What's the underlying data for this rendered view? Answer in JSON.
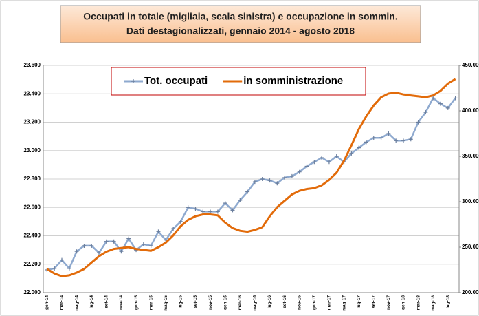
{
  "chart_data": {
    "type": "line",
    "title": "Occupati in  totale (migliaia, scala sinistra)  e occupazione in sommin.",
    "subtitle": "Dati destagionalizzati, gennaio 2014 - agosto 2018",
    "categories": [
      "gen-14",
      null,
      "mar-14",
      null,
      "mag-14",
      null,
      "lug-14",
      null,
      "set-14",
      null,
      "nov-14",
      null,
      "gen-15",
      null,
      "mar-15",
      null,
      "mag-15",
      null,
      "lug-15",
      null,
      "set-15",
      null,
      "nov-15",
      null,
      "gen-16",
      null,
      "mar-16",
      null,
      "mag-16",
      null,
      "lug-16",
      null,
      "set-16",
      null,
      "nov-16",
      null,
      "gen-17",
      null,
      "mar-17",
      null,
      "mag-17",
      null,
      "lug-17",
      null,
      "set-17",
      null,
      "nov-17",
      null,
      "gen-18",
      null,
      "mar-18",
      null,
      "mag-18",
      null,
      "lug-18",
      null
    ],
    "series": [
      {
        "name": "Tot. occupati",
        "color": "#8ea9cf",
        "axis": "y",
        "values": [
          22160,
          22170,
          22230,
          22170,
          22290,
          22330,
          22330,
          22280,
          22360,
          22360,
          22290,
          22380,
          22300,
          22340,
          22330,
          22430,
          22370,
          22450,
          22500,
          22600,
          22590,
          22570,
          22570,
          22570,
          22630,
          22580,
          22650,
          22710,
          22780,
          22800,
          22790,
          22770,
          22810,
          22820,
          22850,
          22890,
          22920,
          22950,
          22920,
          22960,
          22920,
          22980,
          23020,
          23060,
          23090,
          23090,
          23120,
          23070,
          23070,
          23080,
          23200,
          23270,
          23370,
          23330,
          23300,
          23370
        ]
      },
      {
        "name": "in somministrazione",
        "color": "#e26b0a",
        "axis": "y2",
        "values": [
          226000,
          221000,
          218000,
          219000,
          222000,
          226000,
          233000,
          240000,
          245000,
          248000,
          249000,
          250000,
          248000,
          247000,
          246000,
          250000,
          255000,
          263000,
          273000,
          280000,
          284000,
          286000,
          286000,
          285000,
          277000,
          271000,
          268000,
          267000,
          269000,
          272000,
          284000,
          294000,
          301000,
          308000,
          312000,
          314000,
          315000,
          318000,
          324000,
          332000,
          345000,
          362000,
          380000,
          394000,
          406000,
          415000,
          419000,
          420000,
          418000,
          417000,
          416000,
          415000,
          417000,
          422000,
          430000,
          435000
        ]
      }
    ],
    "ylim": [
      22000,
      23600
    ],
    "yticks": [
      {
        "value": 22000,
        "label": "22.000"
      },
      {
        "value": 22200,
        "label": "22.200"
      },
      {
        "value": 22400,
        "label": "22.400"
      },
      {
        "value": 22600,
        "label": "22.600"
      },
      {
        "value": 22800,
        "label": "22.800"
      },
      {
        "value": 23000,
        "label": "23.000"
      },
      {
        "value": 23200,
        "label": "23.200"
      },
      {
        "value": 23400,
        "label": "23.400"
      },
      {
        "value": 23600,
        "label": "23.600"
      }
    ],
    "y2lim": [
      200000,
      450000
    ],
    "y2ticks": [
      {
        "value": 200000,
        "label": "200.000"
      },
      {
        "value": 250000,
        "label": "250.000"
      },
      {
        "value": 300000,
        "label": "300.000"
      },
      {
        "value": 350000,
        "label": "350.000"
      },
      {
        "value": 400000,
        "label": "400.000"
      },
      {
        "value": 450000,
        "label": "450.000"
      }
    ],
    "grid": true
  }
}
